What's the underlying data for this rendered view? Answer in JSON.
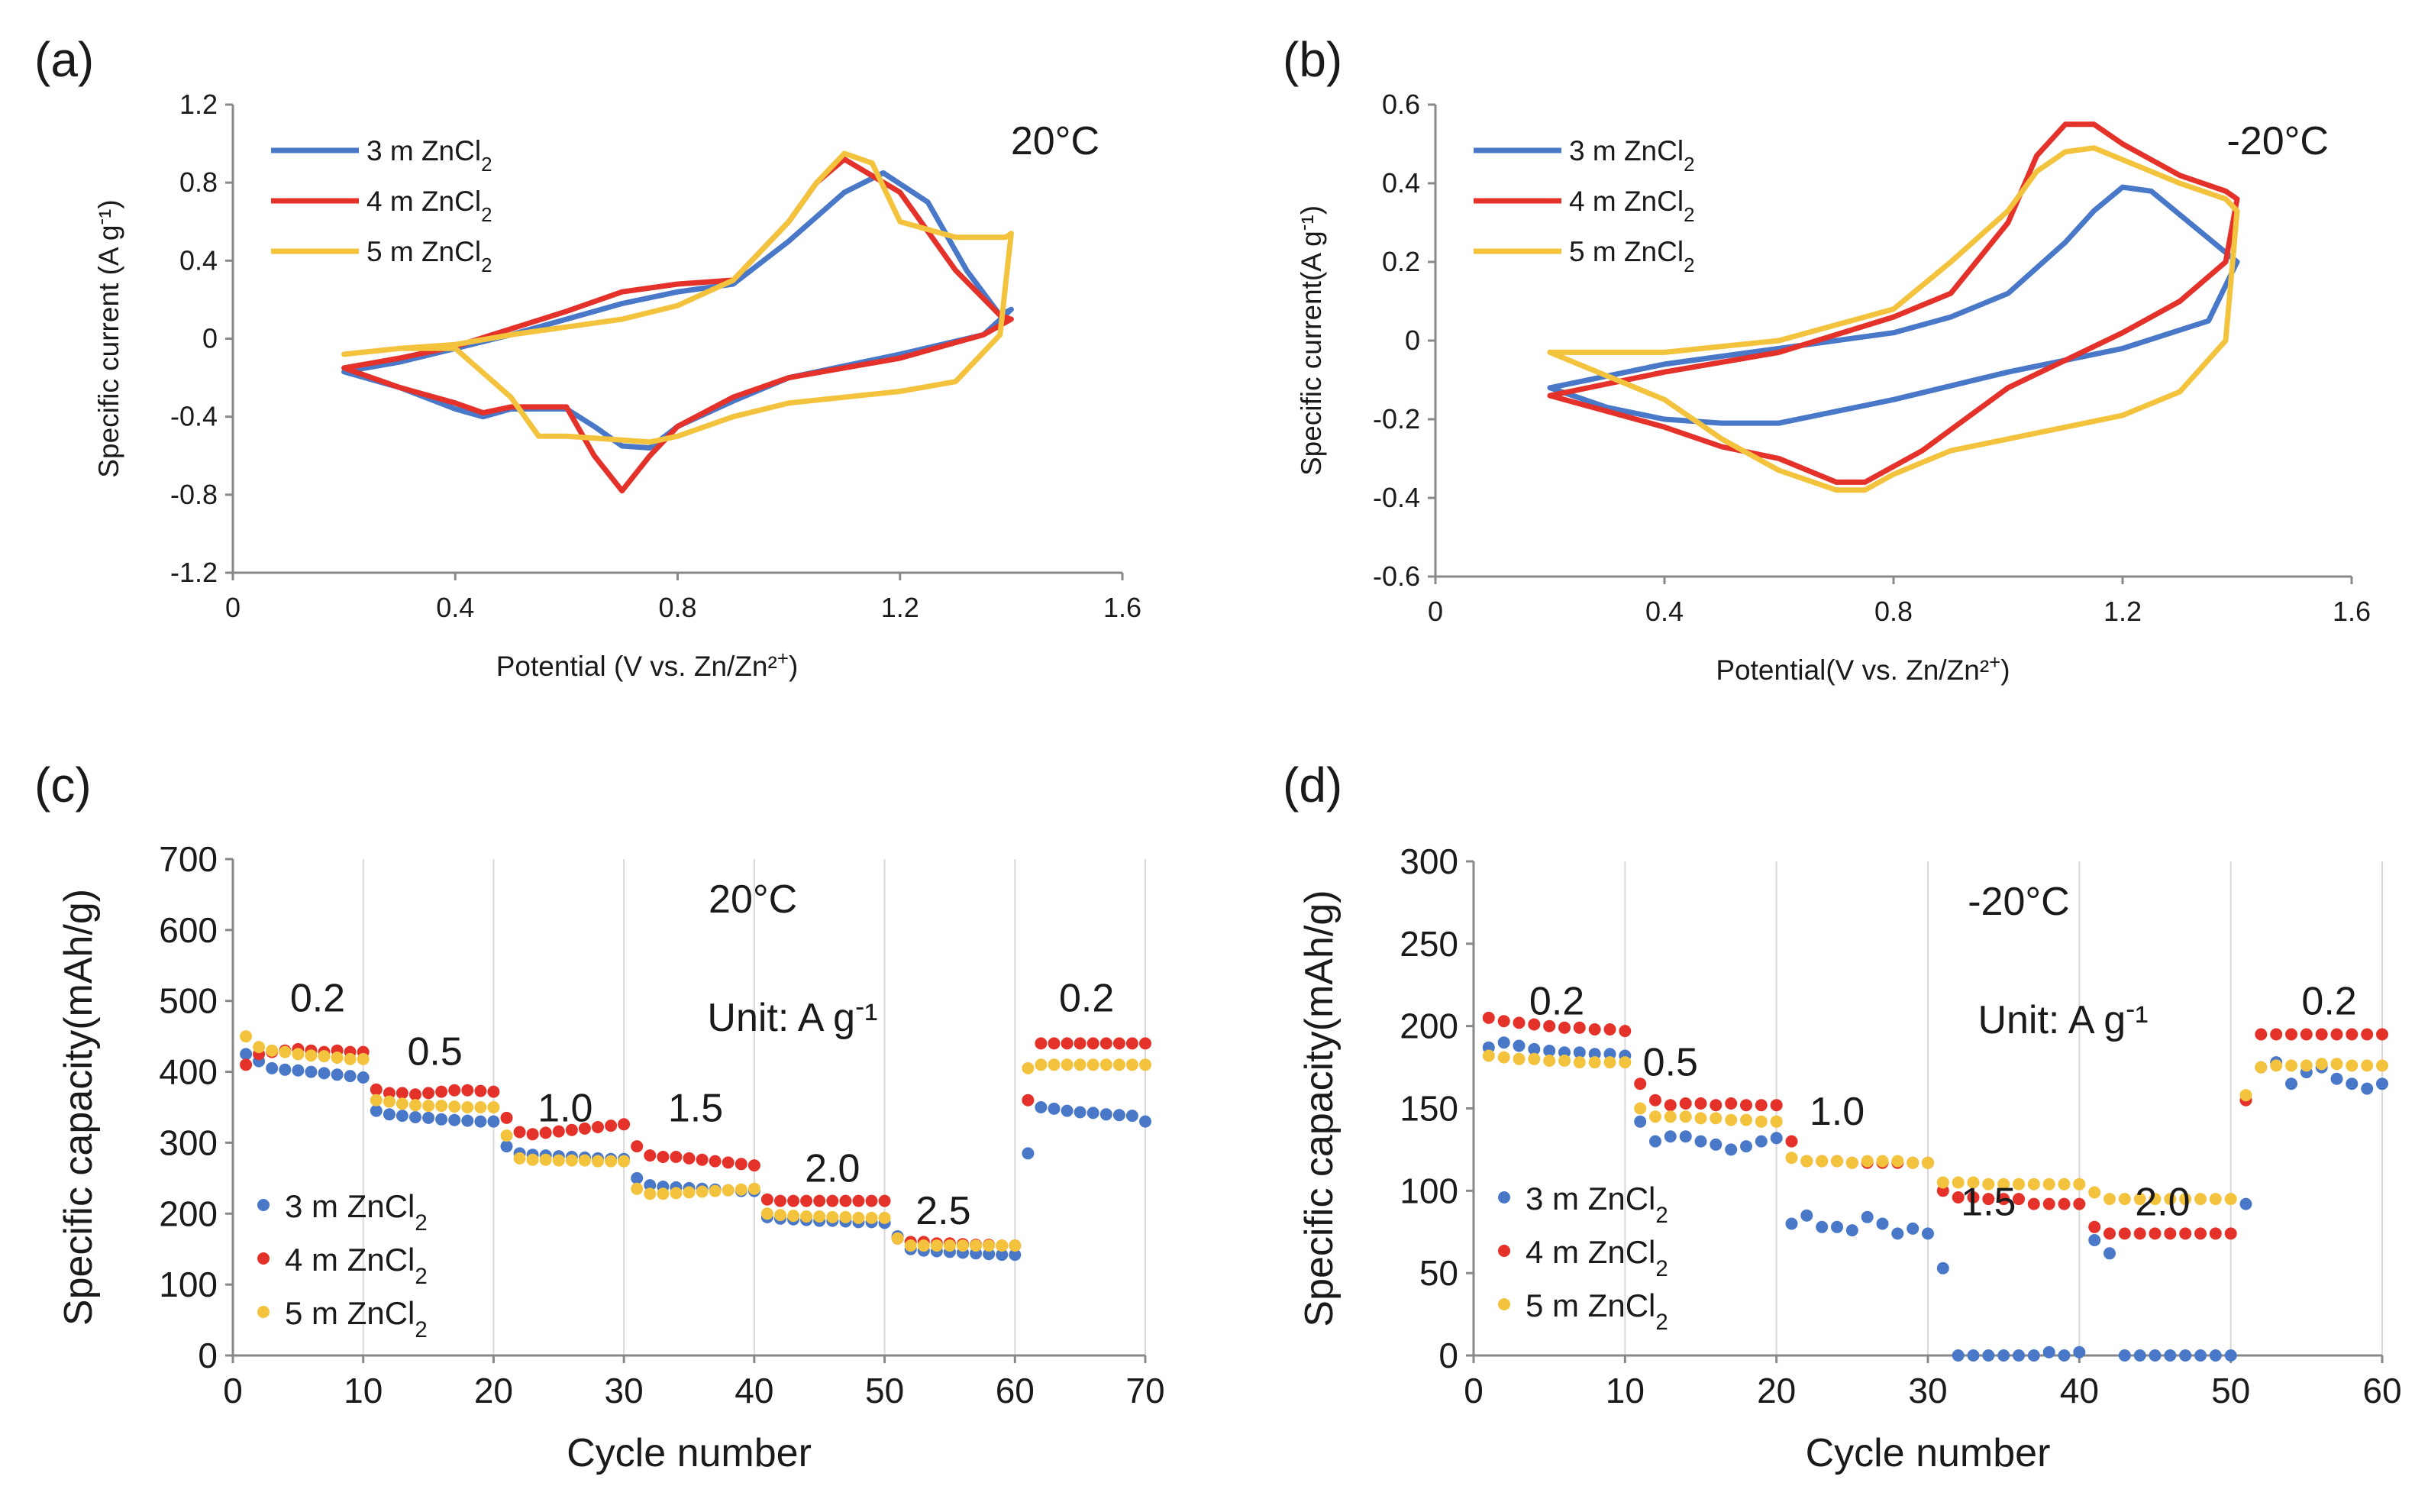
{
  "colors": {
    "3m": "#4a78c8",
    "4m": "#e4322b",
    "5m": "#f3c33e",
    "axis": "#888888",
    "grid": "#d9d9d9"
  },
  "chart_data": [
    {
      "panel": "(a)",
      "type": "line",
      "annotation": "20°C",
      "xlabel": "Potential (V vs. Zn/Zn²⁺)",
      "ylabel": "Specific current (A g⁻¹)",
      "xlim": [
        0,
        1.6
      ],
      "ylim": [
        -1.2,
        1.2
      ],
      "xticks": [
        "0",
        "0.4",
        "0.8",
        "1.2",
        "1.6"
      ],
      "yticks": [
        "1.2",
        "0.8",
        "0.4",
        "0",
        "-0.4",
        "-0.8",
        "-1.2"
      ],
      "legend_position": "top-left",
      "series": [
        {
          "key": "3m",
          "name": "3 m ZnCl₂",
          "x": [
            0.2,
            0.3,
            0.4,
            0.5,
            0.6,
            0.7,
            0.8,
            0.9,
            1.0,
            1.1,
            1.17,
            1.25,
            1.32,
            1.38,
            1.4,
            1.35,
            1.2,
            1.0,
            0.9,
            0.8,
            0.75,
            0.7,
            0.65,
            0.6,
            0.5,
            0.45,
            0.4,
            0.3,
            0.2
          ],
          "y": [
            -0.17,
            -0.12,
            -0.05,
            0.02,
            0.1,
            0.18,
            0.24,
            0.28,
            0.5,
            0.75,
            0.85,
            0.7,
            0.35,
            0.12,
            0.15,
            0.02,
            -0.08,
            -0.2,
            -0.32,
            -0.45,
            -0.56,
            -0.55,
            -0.45,
            -0.36,
            -0.36,
            -0.4,
            -0.36,
            -0.25,
            -0.17
          ]
        },
        {
          "key": "4m",
          "name": "4 m ZnCl₂",
          "x": [
            0.2,
            0.3,
            0.4,
            0.5,
            0.6,
            0.7,
            0.8,
            0.9,
            1.0,
            1.05,
            1.1,
            1.2,
            1.3,
            1.38,
            1.4,
            1.35,
            1.2,
            1.0,
            0.9,
            0.8,
            0.75,
            0.7,
            0.65,
            0.6,
            0.5,
            0.45,
            0.4,
            0.3,
            0.2
          ],
          "y": [
            -0.15,
            -0.1,
            -0.04,
            0.05,
            0.14,
            0.24,
            0.28,
            0.3,
            0.6,
            0.8,
            0.92,
            0.75,
            0.35,
            0.12,
            0.1,
            0.02,
            -0.1,
            -0.2,
            -0.3,
            -0.45,
            -0.6,
            -0.78,
            -0.6,
            -0.35,
            -0.35,
            -0.38,
            -0.33,
            -0.25,
            -0.15
          ]
        },
        {
          "key": "5m",
          "name": "5 m ZnCl₂",
          "x": [
            0.2,
            0.3,
            0.4,
            0.5,
            0.6,
            0.7,
            0.8,
            0.9,
            1.0,
            1.05,
            1.1,
            1.15,
            1.2,
            1.3,
            1.39,
            1.4,
            1.38,
            1.3,
            1.2,
            1.0,
            0.9,
            0.8,
            0.75,
            0.7,
            0.6,
            0.55,
            0.5,
            0.4,
            0.3,
            0.2
          ],
          "y": [
            -0.08,
            -0.05,
            -0.03,
            0.02,
            0.06,
            0.1,
            0.17,
            0.3,
            0.6,
            0.8,
            0.95,
            0.9,
            0.6,
            0.52,
            0.52,
            0.54,
            0.02,
            -0.22,
            -0.27,
            -0.33,
            -0.4,
            -0.5,
            -0.53,
            -0.52,
            -0.5,
            -0.5,
            -0.3,
            -0.05,
            -0.05,
            -0.08
          ]
        }
      ]
    },
    {
      "panel": "(b)",
      "type": "line",
      "annotation": "-20°C",
      "xlabel": "Potential(V vs. Zn/Zn²⁺)",
      "ylabel": "Specific current(A g⁻¹)",
      "xlim": [
        0,
        1.6
      ],
      "ylim": [
        -0.6,
        0.6
      ],
      "xticks": [
        "0",
        "0.4",
        "0.8",
        "1.2",
        "1.6"
      ],
      "yticks": [
        "0.6",
        "0.4",
        "0.2",
        "0",
        "-0.2",
        "-0.4",
        "-0.6"
      ],
      "legend_position": "top-left",
      "series": [
        {
          "key": "3m",
          "name": "3 m ZnCl₂",
          "x": [
            0.2,
            0.4,
            0.6,
            0.8,
            0.9,
            1.0,
            1.1,
            1.15,
            1.2,
            1.25,
            1.3,
            1.35,
            1.4,
            1.35,
            1.2,
            1.0,
            0.8,
            0.6,
            0.5,
            0.4,
            0.3,
            0.2
          ],
          "y": [
            -0.12,
            -0.06,
            -0.02,
            0.02,
            0.06,
            0.12,
            0.25,
            0.33,
            0.39,
            0.38,
            0.32,
            0.26,
            0.2,
            0.05,
            -0.02,
            -0.08,
            -0.15,
            -0.21,
            -0.21,
            -0.2,
            -0.17,
            -0.12
          ]
        },
        {
          "key": "4m",
          "name": "4 m ZnCl₂",
          "x": [
            0.2,
            0.4,
            0.6,
            0.8,
            0.9,
            1.0,
            1.05,
            1.1,
            1.15,
            1.2,
            1.3,
            1.38,
            1.4,
            1.38,
            1.3,
            1.2,
            1.0,
            0.85,
            0.75,
            0.7,
            0.6,
            0.5,
            0.4,
            0.2
          ],
          "y": [
            -0.14,
            -0.08,
            -0.03,
            0.06,
            0.12,
            0.3,
            0.47,
            0.55,
            0.55,
            0.5,
            0.42,
            0.38,
            0.36,
            0.2,
            0.1,
            0.02,
            -0.12,
            -0.28,
            -0.36,
            -0.36,
            -0.3,
            -0.27,
            -0.22,
            -0.14
          ]
        },
        {
          "key": "5m",
          "name": "5 m ZnCl₂",
          "x": [
            0.2,
            0.4,
            0.6,
            0.8,
            0.9,
            1.0,
            1.05,
            1.1,
            1.15,
            1.2,
            1.3,
            1.38,
            1.4,
            1.38,
            1.3,
            1.2,
            1.0,
            0.9,
            0.8,
            0.75,
            0.7,
            0.6,
            0.5,
            0.4,
            0.2
          ],
          "y": [
            -0.03,
            -0.03,
            0.0,
            0.08,
            0.2,
            0.33,
            0.43,
            0.48,
            0.49,
            0.46,
            0.4,
            0.36,
            0.33,
            0.0,
            -0.13,
            -0.19,
            -0.25,
            -0.28,
            -0.34,
            -0.38,
            -0.38,
            -0.33,
            -0.25,
            -0.15,
            -0.03
          ]
        }
      ]
    },
    {
      "panel": "(c)",
      "type": "scatter",
      "annotation": "20°C",
      "unit_note": "Unit: A g⁻¹",
      "xlabel": "Cycle number",
      "ylabel": "Specific capacity(mAh/g)",
      "xlim": [
        0,
        70
      ],
      "ylim": [
        0,
        700
      ],
      "xticks": [
        "0",
        "10",
        "20",
        "30",
        "40",
        "50",
        "60",
        "70"
      ],
      "yticks": [
        "700",
        "600",
        "500",
        "400",
        "300",
        "200",
        "100",
        "0"
      ],
      "legend_position": "bottom-left",
      "rate_labels": [
        {
          "text": "0.2",
          "x": 6.5,
          "y": 485
        },
        {
          "text": "0.5",
          "x": 15.5,
          "y": 410
        },
        {
          "text": "1.0",
          "x": 25.5,
          "y": 330
        },
        {
          "text": "1.5",
          "x": 35.5,
          "y": 330
        },
        {
          "text": "2.0",
          "x": 46.0,
          "y": 245
        },
        {
          "text": "2.5",
          "x": 54.5,
          "y": 185
        },
        {
          "text": "0.2",
          "x": 65.5,
          "y": 485
        }
      ],
      "series": [
        {
          "key": "3m",
          "name": "3 m ZnCl₂",
          "y": [
            425,
            415,
            405,
            403,
            402,
            400,
            398,
            396,
            394,
            392,
            345,
            340,
            338,
            336,
            335,
            333,
            332,
            331,
            330,
            330,
            295,
            285,
            283,
            282,
            281,
            280,
            279,
            278,
            277,
            277,
            250,
            240,
            238,
            237,
            236,
            235,
            234,
            233,
            232,
            232,
            195,
            193,
            192,
            191,
            190,
            190,
            189,
            188,
            188,
            187,
            168,
            150,
            148,
            147,
            146,
            145,
            144,
            143,
            142,
            142,
            285,
            350,
            348,
            345,
            343,
            342,
            340,
            339,
            338,
            330
          ]
        },
        {
          "key": "4m",
          "name": "4 m ZnCl₂",
          "y": [
            410,
            425,
            428,
            430,
            432,
            430,
            428,
            430,
            428,
            428,
            375,
            370,
            370,
            368,
            370,
            372,
            374,
            374,
            373,
            372,
            335,
            315,
            312,
            314,
            316,
            318,
            320,
            322,
            324,
            326,
            295,
            282,
            280,
            280,
            278,
            276,
            274,
            272,
            270,
            268,
            220,
            218,
            218,
            218,
            218,
            218,
            218,
            218,
            218,
            218,
            165,
            160,
            160,
            158,
            158,
            157,
            156,
            156,
            155,
            155,
            360,
            440,
            440,
            440,
            440,
            440,
            440,
            440,
            440,
            440
          ]
        },
        {
          "key": "5m",
          "name": "5 m ZnCl₂",
          "y": [
            450,
            435,
            430,
            428,
            425,
            423,
            422,
            420,
            418,
            418,
            360,
            358,
            355,
            353,
            352,
            352,
            351,
            350,
            350,
            350,
            310,
            278,
            276,
            276,
            275,
            275,
            275,
            274,
            274,
            274,
            235,
            228,
            228,
            229,
            230,
            231,
            232,
            233,
            234,
            235,
            200,
            198,
            197,
            196,
            196,
            195,
            195,
            194,
            194,
            194,
            165,
            155,
            155,
            155,
            155,
            155,
            155,
            155,
            155,
            155,
            405,
            410,
            410,
            410,
            410,
            410,
            410,
            410,
            410,
            410
          ]
        }
      ]
    },
    {
      "panel": "(d)",
      "type": "scatter",
      "annotation": "-20°C",
      "unit_note": "Unit: A g⁻¹",
      "xlabel": "Cycle number",
      "ylabel": "Specific capacity(mAh/g)",
      "xlim": [
        0,
        60
      ],
      "ylim": [
        0,
        300
      ],
      "xticks": [
        "0",
        "10",
        "20",
        "30",
        "40",
        "50",
        "60"
      ],
      "yticks": [
        "300",
        "250",
        "200",
        "150",
        "100",
        "50",
        "0"
      ],
      "legend_position": "bottom-left",
      "rate_labels": [
        {
          "text": "0.2",
          "x": 5.5,
          "y": 207
        },
        {
          "text": "0.5",
          "x": 13.0,
          "y": 170
        },
        {
          "text": "1.0",
          "x": 24.0,
          "y": 140
        },
        {
          "text": "1.5",
          "x": 34.0,
          "y": 85
        },
        {
          "text": "2.0",
          "x": 45.5,
          "y": 85
        },
        {
          "text": "0.2",
          "x": 56.5,
          "y": 207
        }
      ],
      "series": [
        {
          "key": "3m",
          "name": "3 m ZnCl₂",
          "y": [
            187,
            190,
            188,
            186,
            185,
            184,
            184,
            183,
            183,
            182,
            142,
            130,
            133,
            133,
            130,
            128,
            125,
            127,
            130,
            132,
            80,
            85,
            78,
            78,
            76,
            84,
            80,
            74,
            77,
            74,
            53,
            0,
            0,
            0,
            0,
            0,
            0,
            2,
            0,
            2,
            70,
            62,
            0,
            0,
            0,
            0,
            0,
            0,
            0,
            0,
            92,
            175,
            178,
            165,
            172,
            175,
            168,
            165,
            162,
            165
          ]
        },
        {
          "key": "4m",
          "name": "4 m ZnCl₂",
          "y": [
            205,
            203,
            202,
            201,
            200,
            199,
            199,
            198,
            198,
            197,
            165,
            155,
            152,
            153,
            153,
            152,
            153,
            152,
            152,
            152,
            130,
            118,
            118,
            118,
            117,
            117,
            117,
            117,
            117,
            117,
            100,
            96,
            96,
            95,
            95,
            95,
            92,
            92,
            92,
            92,
            78,
            74,
            74,
            74,
            74,
            74,
            74,
            74,
            74,
            74,
            155,
            195,
            195,
            195,
            195,
            195,
            195,
            195,
            195,
            195
          ]
        },
        {
          "key": "5m",
          "name": "5 m ZnCl₂",
          "y": [
            182,
            181,
            180,
            180,
            179,
            179,
            178,
            178,
            178,
            178,
            150,
            145,
            145,
            145,
            144,
            144,
            143,
            143,
            142,
            142,
            120,
            118,
            118,
            118,
            117,
            118,
            118,
            118,
            117,
            117,
            105,
            105,
            105,
            104,
            104,
            104,
            104,
            104,
            104,
            104,
            99,
            95,
            95,
            95,
            95,
            95,
            95,
            95,
            95,
            95,
            158,
            175,
            176,
            176,
            176,
            177,
            177,
            176,
            176,
            176
          ]
        }
      ]
    }
  ]
}
